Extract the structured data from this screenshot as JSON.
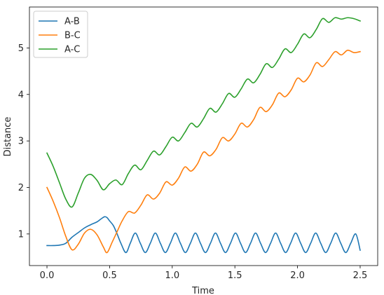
{
  "chart_data": {
    "type": "line",
    "title": "",
    "xlabel": "Time",
    "ylabel": "Distance",
    "xlim": [
      -0.14,
      2.64
    ],
    "ylim": [
      0.32,
      5.88
    ],
    "xticks": [
      0.0,
      0.5,
      1.0,
      1.5,
      2.0,
      2.5
    ],
    "xtick_labels": [
      "0.0",
      "0.5",
      "1.0",
      "1.5",
      "2.0",
      "2.5"
    ],
    "yticks": [
      1,
      2,
      3,
      4,
      5
    ],
    "ytick_labels": [
      "1",
      "2",
      "3",
      "4",
      "5"
    ],
    "grid": false,
    "legend": "top-left",
    "colors": {
      "A-B": "#1f77b4",
      "B-C": "#ff7f0e",
      "A-C": "#2ca02c"
    },
    "series": [
      {
        "name": "A-B",
        "x": [
          0.0,
          0.05,
          0.1,
          0.15,
          0.2,
          0.25,
          0.3,
          0.35,
          0.4,
          0.43,
          0.46,
          0.48,
          0.5,
          0.53,
          0.56,
          0.59,
          0.63,
          0.665,
          0.705,
          0.745,
          0.785,
          0.825,
          0.865,
          0.905,
          0.945,
          0.985,
          1.025,
          1.065,
          1.105,
          1.145,
          1.185,
          1.225,
          1.265,
          1.305,
          1.345,
          1.385,
          1.425,
          1.465,
          1.505,
          1.545,
          1.585,
          1.625,
          1.665,
          1.705,
          1.745,
          1.785,
          1.825,
          1.865,
          1.905,
          1.945,
          1.985,
          2.025,
          2.065,
          2.105,
          2.145,
          2.185,
          2.225,
          2.265,
          2.305,
          2.345,
          2.385,
          2.425,
          2.465,
          2.5
        ],
        "y": [
          0.75,
          0.75,
          0.76,
          0.8,
          0.93,
          1.03,
          1.13,
          1.2,
          1.26,
          1.32,
          1.37,
          1.35,
          1.28,
          1.18,
          1.0,
          0.8,
          0.6,
          0.8,
          1.02,
          0.8,
          0.6,
          0.8,
          1.02,
          0.8,
          0.6,
          0.8,
          1.02,
          0.8,
          0.6,
          0.8,
          1.02,
          0.8,
          0.6,
          0.8,
          1.02,
          0.8,
          0.6,
          0.8,
          1.02,
          0.8,
          0.6,
          0.8,
          1.02,
          0.8,
          0.6,
          0.8,
          1.02,
          0.8,
          0.6,
          0.8,
          1.02,
          0.8,
          0.6,
          0.8,
          1.02,
          0.8,
          0.6,
          0.8,
          1.02,
          0.8,
          0.6,
          0.8,
          1.0,
          0.65
        ]
      },
      {
        "name": "B-C",
        "x": [
          0.0,
          0.05,
          0.1,
          0.15,
          0.2,
          0.25,
          0.3,
          0.35,
          0.4,
          0.45,
          0.48,
          0.52,
          0.56,
          0.6,
          0.65,
          0.7,
          0.75,
          0.8,
          0.85,
          0.9,
          0.95,
          1.0,
          1.05,
          1.1,
          1.15,
          1.2,
          1.25,
          1.3,
          1.35,
          1.4,
          1.45,
          1.5,
          1.55,
          1.6,
          1.65,
          1.7,
          1.75,
          1.8,
          1.85,
          1.9,
          1.95,
          2.0,
          2.05,
          2.1,
          2.15,
          2.2,
          2.25,
          2.3,
          2.35,
          2.4,
          2.45,
          2.5
        ],
        "y": [
          2.0,
          1.7,
          1.35,
          0.95,
          0.66,
          0.78,
          1.02,
          1.1,
          0.98,
          0.72,
          0.6,
          0.82,
          1.05,
          1.28,
          1.48,
          1.45,
          1.62,
          1.84,
          1.75,
          1.88,
          2.12,
          2.05,
          2.2,
          2.44,
          2.35,
          2.5,
          2.76,
          2.68,
          2.82,
          3.07,
          3.0,
          3.15,
          3.38,
          3.3,
          3.46,
          3.72,
          3.63,
          3.78,
          4.03,
          3.95,
          4.1,
          4.35,
          4.27,
          4.42,
          4.68,
          4.6,
          4.75,
          4.92,
          4.85,
          4.95,
          4.9,
          4.92
        ]
      },
      {
        "name": "A-C",
        "x": [
          0.0,
          0.05,
          0.1,
          0.15,
          0.2,
          0.25,
          0.3,
          0.35,
          0.4,
          0.45,
          0.5,
          0.55,
          0.6,
          0.65,
          0.7,
          0.75,
          0.8,
          0.85,
          0.9,
          0.95,
          1.0,
          1.05,
          1.1,
          1.15,
          1.2,
          1.25,
          1.3,
          1.35,
          1.4,
          1.45,
          1.5,
          1.55,
          1.6,
          1.65,
          1.7,
          1.75,
          1.8,
          1.85,
          1.9,
          1.95,
          2.0,
          2.05,
          2.1,
          2.15,
          2.2,
          2.25,
          2.3,
          2.35,
          2.4,
          2.45,
          2.5
        ],
        "y": [
          2.74,
          2.45,
          2.1,
          1.75,
          1.58,
          1.88,
          2.2,
          2.28,
          2.15,
          1.95,
          2.08,
          2.16,
          2.06,
          2.3,
          2.48,
          2.38,
          2.58,
          2.78,
          2.7,
          2.88,
          3.08,
          3.0,
          3.18,
          3.38,
          3.3,
          3.48,
          3.7,
          3.62,
          3.8,
          4.02,
          3.94,
          4.12,
          4.33,
          4.25,
          4.43,
          4.66,
          4.58,
          4.76,
          4.98,
          4.9,
          5.08,
          5.3,
          5.22,
          5.4,
          5.63,
          5.55,
          5.65,
          5.62,
          5.65,
          5.63,
          5.58
        ]
      }
    ]
  }
}
